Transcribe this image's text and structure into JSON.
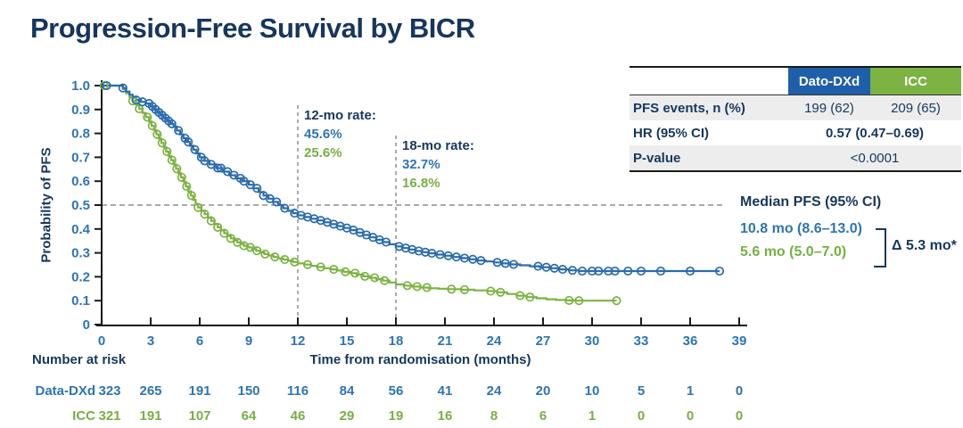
{
  "title": "Progression-Free Survival by BICR",
  "colors": {
    "navy_text": "#17375D",
    "curve_blue": "#2A6BAF",
    "curve_green": "#7CB342",
    "tick_text_blue": "#2E74B5",
    "at_risk_green": "#76B043",
    "header_blue_bg": "#1F5FA9",
    "header_green_bg": "#7CB342",
    "table_row_gray": "#EDEDEE",
    "dashed_gray": "#8F8F8F"
  },
  "summary_table": {
    "col_dato": "Dato-DXd",
    "col_icc": "ICC",
    "pfs_events": {
      "label": "PFS events, n (%)",
      "dato": "199 (62)",
      "icc": "209 (65)"
    },
    "hr": {
      "label": "HR (95% CI)",
      "value": "0.57 (0.47–0.69)"
    },
    "pvalue": {
      "label": "P-value",
      "value": "<0.0001"
    }
  },
  "annotations": {
    "rate12": {
      "label": "12-mo rate:",
      "dato": "45.6%",
      "icc": "25.6%"
    },
    "rate18": {
      "label": "18-mo rate:",
      "dato": "32.7%",
      "icc": "16.8%"
    },
    "median": {
      "heading": "Median PFS (95% CI)",
      "dato": "10.8 mo (8.6–13.0)",
      "icc": "5.6 mo (5.0–7.0)",
      "delta": "Δ 5.3 mo*"
    }
  },
  "chart_data": {
    "type": "line",
    "subtype": "kaplan-meier-step",
    "title": "Progression-Free Survival by BICR",
    "xlabel": "Time from randomisation (months)",
    "ylabel": "Probability of PFS",
    "xlim": [
      0,
      39
    ],
    "ylim": [
      0,
      1.0
    ],
    "x_ticks": [
      0,
      3,
      6,
      9,
      12,
      15,
      18,
      21,
      24,
      27,
      30,
      33,
      36,
      39
    ],
    "y_ticks": [
      [
        "0",
        0
      ],
      [
        "0.1",
        0.1
      ],
      [
        "0.2",
        0.2
      ],
      [
        "0.3",
        0.3
      ],
      [
        "0.4",
        0.4
      ],
      [
        "0.5",
        0.5
      ],
      [
        "0.6",
        0.6
      ],
      [
        "0.7",
        0.7
      ],
      [
        "0.8",
        0.8
      ],
      [
        "0.9",
        0.9
      ],
      [
        "1.0",
        1.0
      ]
    ],
    "grid": false,
    "legend_position": "none",
    "reference_lines": {
      "horizontal_y": 0.5,
      "vertical_x": [
        12,
        18
      ]
    },
    "series": [
      {
        "name": "Dato-DXd",
        "color": "#2A6BAF",
        "median_months": 10.8,
        "rate_12mo": 0.456,
        "rate_18mo": 0.327,
        "start": [
          0,
          1.0
        ],
        "end_x": 37.8,
        "steps": [
          [
            1.3,
            0.99
          ],
          [
            1.5,
            0.975
          ],
          [
            1.7,
            0.962
          ],
          [
            1.9,
            0.95
          ],
          [
            2.1,
            0.94
          ],
          [
            2.4,
            0.932
          ],
          [
            2.7,
            0.925
          ],
          [
            3.0,
            0.913
          ],
          [
            3.2,
            0.9
          ],
          [
            3.4,
            0.888
          ],
          [
            3.6,
            0.876
          ],
          [
            3.8,
            0.864
          ],
          [
            4.0,
            0.852
          ],
          [
            4.2,
            0.84
          ],
          [
            4.4,
            0.828
          ],
          [
            4.6,
            0.812
          ],
          [
            4.8,
            0.796
          ],
          [
            5.0,
            0.78
          ],
          [
            5.2,
            0.764
          ],
          [
            5.4,
            0.748
          ],
          [
            5.6,
            0.732
          ],
          [
            5.8,
            0.716
          ],
          [
            6.0,
            0.7
          ],
          [
            6.3,
            0.685
          ],
          [
            6.6,
            0.67
          ],
          [
            7.0,
            0.655
          ],
          [
            7.4,
            0.64
          ],
          [
            7.8,
            0.625
          ],
          [
            8.2,
            0.612
          ],
          [
            8.6,
            0.6
          ],
          [
            9.0,
            0.585
          ],
          [
            9.3,
            0.57
          ],
          [
            9.6,
            0.555
          ],
          [
            9.9,
            0.54
          ],
          [
            10.2,
            0.527
          ],
          [
            10.5,
            0.513
          ],
          [
            10.8,
            0.5
          ],
          [
            11.1,
            0.487
          ],
          [
            11.4,
            0.476
          ],
          [
            11.7,
            0.466
          ],
          [
            12.0,
            0.457
          ],
          [
            12.4,
            0.45
          ],
          [
            12.8,
            0.443
          ],
          [
            13.2,
            0.436
          ],
          [
            13.6,
            0.428
          ],
          [
            14.0,
            0.42
          ],
          [
            14.4,
            0.412
          ],
          [
            14.8,
            0.404
          ],
          [
            15.2,
            0.395
          ],
          [
            15.6,
            0.385
          ],
          [
            16.0,
            0.375
          ],
          [
            16.4,
            0.365
          ],
          [
            16.8,
            0.355
          ],
          [
            17.2,
            0.345
          ],
          [
            17.6,
            0.336
          ],
          [
            18.0,
            0.327
          ],
          [
            18.4,
            0.32
          ],
          [
            18.8,
            0.314
          ],
          [
            19.2,
            0.308
          ],
          [
            19.6,
            0.303
          ],
          [
            20.0,
            0.298
          ],
          [
            20.5,
            0.293
          ],
          [
            21.0,
            0.288
          ],
          [
            21.5,
            0.283
          ],
          [
            22.0,
            0.278
          ],
          [
            22.5,
            0.273
          ],
          [
            23.0,
            0.268
          ],
          [
            23.5,
            0.264
          ],
          [
            24.0,
            0.26
          ],
          [
            24.5,
            0.256
          ],
          [
            25.0,
            0.252
          ],
          [
            25.6,
            0.248
          ],
          [
            26.2,
            0.244
          ],
          [
            26.8,
            0.24
          ],
          [
            27.4,
            0.236
          ],
          [
            28.0,
            0.231
          ],
          [
            28.6,
            0.227
          ],
          [
            29.2,
            0.224
          ]
        ],
        "censor_x": [
          0.3,
          1.3,
          2.1,
          2.5,
          2.9,
          3.1,
          3.3,
          3.5,
          3.7,
          3.9,
          4.1,
          4.3,
          4.7,
          5.1,
          5.3,
          5.7,
          6.1,
          6.3,
          6.7,
          7.1,
          7.3,
          7.7,
          8.1,
          8.5,
          8.7,
          9.1,
          9.5,
          9.9,
          10.3,
          10.7,
          11.2,
          11.8,
          12.2,
          12.6,
          13.0,
          13.4,
          13.8,
          14.2,
          14.6,
          15.0,
          15.4,
          15.8,
          16.2,
          16.6,
          17.0,
          17.4,
          18.2,
          18.6,
          19.0,
          19.4,
          19.8,
          20.2,
          20.7,
          21.2,
          21.7,
          22.2,
          22.7,
          23.2,
          24.2,
          24.7,
          25.2,
          26.7,
          27.2,
          27.7,
          28.2,
          28.8,
          29.4,
          30.0,
          30.4,
          31.0,
          31.4,
          32.2,
          33.0,
          34.2,
          36.0,
          37.8
        ]
      },
      {
        "name": "ICC",
        "color": "#7CB342",
        "median_months": 5.6,
        "rate_12mo": 0.256,
        "rate_18mo": 0.168,
        "start": [
          0,
          1.0
        ],
        "end_x": 31.5,
        "steps": [
          [
            1.3,
            0.985
          ],
          [
            1.5,
            0.968
          ],
          [
            1.7,
            0.952
          ],
          [
            1.9,
            0.936
          ],
          [
            2.1,
            0.92
          ],
          [
            2.3,
            0.903
          ],
          [
            2.5,
            0.886
          ],
          [
            2.7,
            0.868
          ],
          [
            2.9,
            0.85
          ],
          [
            3.05,
            0.832
          ],
          [
            3.2,
            0.814
          ],
          [
            3.35,
            0.796
          ],
          [
            3.5,
            0.778
          ],
          [
            3.65,
            0.76
          ],
          [
            3.8,
            0.742
          ],
          [
            3.95,
            0.724
          ],
          [
            4.1,
            0.706
          ],
          [
            4.25,
            0.688
          ],
          [
            4.4,
            0.67
          ],
          [
            4.55,
            0.652
          ],
          [
            4.7,
            0.634
          ],
          [
            4.85,
            0.616
          ],
          [
            5.0,
            0.598
          ],
          [
            5.15,
            0.578
          ],
          [
            5.3,
            0.558
          ],
          [
            5.45,
            0.54
          ],
          [
            5.6,
            0.522
          ],
          [
            5.75,
            0.505
          ],
          [
            5.9,
            0.49
          ],
          [
            6.1,
            0.476
          ],
          [
            6.3,
            0.462
          ],
          [
            6.5,
            0.448
          ],
          [
            6.7,
            0.434
          ],
          [
            6.9,
            0.42
          ],
          [
            7.1,
            0.407
          ],
          [
            7.3,
            0.394
          ],
          [
            7.5,
            0.382
          ],
          [
            7.7,
            0.371
          ],
          [
            7.9,
            0.361
          ],
          [
            8.1,
            0.352
          ],
          [
            8.3,
            0.344
          ],
          [
            8.5,
            0.337
          ],
          [
            8.7,
            0.33
          ],
          [
            8.95,
            0.323
          ],
          [
            9.2,
            0.316
          ],
          [
            9.45,
            0.309
          ],
          [
            9.7,
            0.302
          ],
          [
            9.95,
            0.295
          ],
          [
            10.2,
            0.289
          ],
          [
            10.5,
            0.283
          ],
          [
            10.8,
            0.277
          ],
          [
            11.1,
            0.272
          ],
          [
            11.4,
            0.267
          ],
          [
            11.7,
            0.262
          ],
          [
            12.0,
            0.256
          ],
          [
            12.4,
            0.251
          ],
          [
            12.8,
            0.246
          ],
          [
            13.2,
            0.241
          ],
          [
            13.6,
            0.236
          ],
          [
            14.0,
            0.231
          ],
          [
            14.4,
            0.226
          ],
          [
            14.8,
            0.221
          ],
          [
            15.2,
            0.215
          ],
          [
            15.6,
            0.209
          ],
          [
            16.0,
            0.202
          ],
          [
            16.4,
            0.196
          ],
          [
            16.8,
            0.19
          ],
          [
            17.2,
            0.184
          ],
          [
            17.6,
            0.176
          ],
          [
            18.0,
            0.168
          ],
          [
            18.5,
            0.163
          ],
          [
            19.0,
            0.159
          ],
          [
            19.5,
            0.155
          ],
          [
            20.0,
            0.152
          ],
          [
            20.6,
            0.15
          ],
          [
            21.2,
            0.148
          ],
          [
            22.0,
            0.146
          ],
          [
            22.8,
            0.143
          ],
          [
            23.6,
            0.14
          ],
          [
            24.2,
            0.135
          ],
          [
            24.8,
            0.128
          ],
          [
            25.4,
            0.121
          ],
          [
            26.0,
            0.115
          ],
          [
            26.6,
            0.11
          ],
          [
            27.2,
            0.106
          ],
          [
            27.8,
            0.103
          ],
          [
            28.4,
            0.101
          ],
          [
            29.0,
            0.1
          ]
        ],
        "censor_x": [
          0.15,
          1.9,
          2.3,
          2.8,
          3.1,
          3.4,
          3.7,
          4.0,
          4.3,
          4.6,
          4.9,
          5.2,
          5.5,
          5.9,
          6.3,
          6.7,
          7.1,
          7.5,
          7.9,
          8.3,
          8.7,
          9.1,
          9.5,
          10.0,
          10.6,
          11.2,
          11.8,
          12.6,
          13.4,
          14.2,
          14.9,
          15.5,
          16.1,
          16.7,
          17.3,
          18.7,
          19.3,
          19.9,
          21.4,
          22.2,
          23.8,
          24.4,
          25.6,
          26.2,
          28.6,
          29.2,
          31.5
        ]
      }
    ],
    "number_at_risk": {
      "heading": "Number at risk",
      "rows": [
        {
          "label": "Data-DXd",
          "values": [
            323,
            265,
            191,
            150,
            116,
            84,
            56,
            41,
            24,
            20,
            10,
            5,
            1,
            0
          ]
        },
        {
          "label": "ICC",
          "values": [
            321,
            191,
            107,
            64,
            46,
            29,
            19,
            16,
            8,
            6,
            1,
            0,
            0,
            0
          ]
        }
      ]
    }
  }
}
